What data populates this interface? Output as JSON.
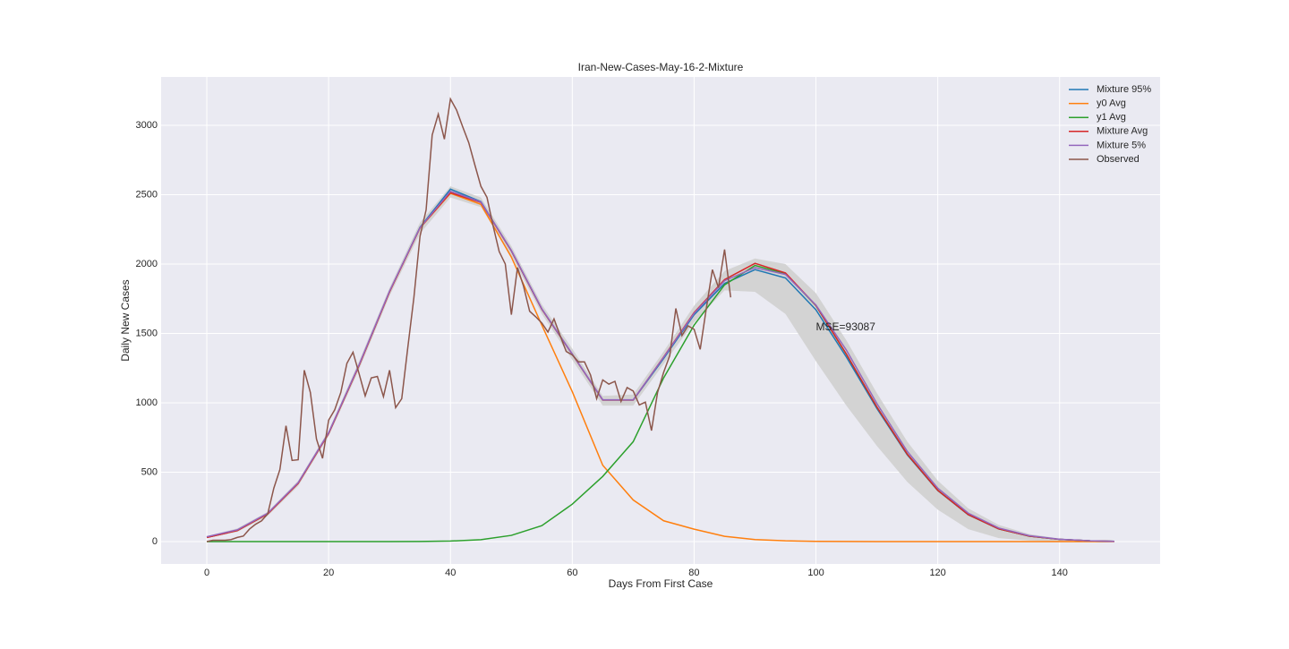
{
  "chart_data": {
    "type": "line",
    "title": "Iran-New-Cases-May-16-2-Mixture",
    "xlabel": "Days From First Case",
    "ylabel": "Daily New Cases",
    "annotation": {
      "text": "MSE=93087",
      "x": 100,
      "y": 1542
    },
    "xlim": [
      -7.5,
      156.5
    ],
    "ylim": [
      -161,
      3348
    ],
    "xticks": [
      0,
      20,
      40,
      60,
      80,
      100,
      120,
      140
    ],
    "yticks": [
      0,
      500,
      1000,
      1500,
      2000,
      2500,
      3000
    ],
    "grid": true,
    "legend": "upper right",
    "x": [
      0,
      5,
      10,
      15,
      20,
      25,
      30,
      35,
      40,
      45,
      50,
      55,
      60,
      65,
      70,
      75,
      80,
      85,
      90,
      95,
      100,
      105,
      110,
      115,
      120,
      125,
      130,
      135,
      140,
      145,
      149
    ],
    "band": {
      "color": "#d3d3d3",
      "upper": [
        40,
        95,
        215,
        440,
        800,
        1300,
        1830,
        2300,
        2560,
        2480,
        2130,
        1710,
        1390,
        1050,
        1060,
        1370,
        1700,
        1950,
        2040,
        2000,
        1790,
        1450,
        1070,
        720,
        440,
        240,
        120,
        55,
        22,
        8,
        3
      ],
      "lower": [
        25,
        70,
        185,
        400,
        760,
        1240,
        1770,
        2220,
        2480,
        2410,
        2060,
        1640,
        1310,
        980,
        980,
        1280,
        1580,
        1810,
        1800,
        1640,
        1300,
        980,
        690,
        430,
        230,
        90,
        25,
        8,
        2,
        0,
        0
      ]
    },
    "series": [
      {
        "name": "Mixture 95%",
        "color": "#1f77b4",
        "values": [
          30,
          80,
          200,
          420,
          780,
          1270,
          1800,
          2265,
          2540,
          2450,
          2095,
          1675,
          1350,
          1020,
          1020,
          1320,
          1635,
          1860,
          1960,
          1900,
          1670,
          1330,
          960,
          625,
          368,
          194,
          92,
          40,
          16,
          6,
          2
        ]
      },
      {
        "name": "y0 Avg",
        "color": "#ff7f0e",
        "values": [
          30,
          80,
          200,
          420,
          780,
          1270,
          1800,
          2260,
          2510,
          2430,
          2050,
          1560,
          1080,
          550,
          300,
          150,
          90,
          38,
          15,
          6,
          2,
          1,
          0,
          0,
          0,
          0,
          0,
          0,
          0,
          0,
          0
        ]
      },
      {
        "name": "y1 Avg",
        "color": "#2ca02c",
        "values": [
          0,
          0,
          0,
          0,
          0,
          0,
          0,
          1,
          4,
          14,
          45,
          115,
          270,
          470,
          720,
          1180,
          1560,
          1850,
          1990,
          1930,
          1700,
          1350,
          970,
          630,
          370,
          195,
          92,
          40,
          16,
          6,
          2
        ]
      },
      {
        "name": "Mixture Avg",
        "color": "#d62728",
        "values": [
          30,
          80,
          200,
          420,
          780,
          1270,
          1800,
          2261,
          2514,
          2444,
          2095,
          1675,
          1350,
          1020,
          1020,
          1330,
          1650,
          1888,
          2005,
          1936,
          1702,
          1351,
          970,
          630,
          370,
          195,
          92,
          40,
          16,
          6,
          2
        ]
      },
      {
        "name": "Mixture 5%",
        "color": "#9467bd",
        "values": [
          35,
          85,
          205,
          425,
          785,
          1275,
          1805,
          2262,
          2525,
          2447,
          2098,
          1678,
          1352,
          1022,
          1022,
          1328,
          1645,
          1880,
          1975,
          1925,
          1705,
          1380,
          995,
          650,
          385,
          205,
          98,
          43,
          17,
          6,
          2
        ]
      },
      {
        "name": "Observed",
        "color": "#8c564b",
        "x": [
          0,
          1,
          2,
          3,
          4,
          5,
          6,
          7,
          8,
          9,
          10,
          11,
          12,
          13,
          14,
          15,
          16,
          17,
          18,
          19,
          20,
          21,
          22,
          23,
          24,
          25,
          26,
          27,
          28,
          29,
          30,
          31,
          32,
          33,
          34,
          35,
          36,
          37,
          38,
          39,
          40,
          41,
          42,
          43,
          44,
          45,
          46,
          47,
          48,
          49,
          50,
          51,
          52,
          53,
          54,
          55,
          56,
          57,
          58,
          59,
          60,
          61,
          62,
          63,
          64,
          65,
          66,
          67,
          68,
          69,
          70,
          71,
          72,
          73,
          74,
          75,
          76,
          77,
          78,
          79,
          80,
          81,
          82,
          83,
          84,
          85,
          86
        ],
        "values": [
          0,
          10,
          10,
          10,
          15,
          30,
          40,
          90,
          125,
          150,
          200,
          385,
          520,
          835,
          585,
          590,
          1235,
          1075,
          740,
          600,
          875,
          950,
          1075,
          1285,
          1365,
          1210,
          1050,
          1180,
          1190,
          1045,
          1235,
          965,
          1030,
          1400,
          1760,
          2200,
          2390,
          2930,
          3080,
          2900,
          3190,
          3110,
          2990,
          2875,
          2715,
          2560,
          2480,
          2275,
          2090,
          2000,
          1635,
          1975,
          1840,
          1660,
          1620,
          1575,
          1510,
          1605,
          1485,
          1370,
          1345,
          1295,
          1295,
          1200,
          1030,
          1165,
          1135,
          1155,
          1010,
          1110,
          1085,
          985,
          1005,
          800,
          1075,
          1220,
          1340,
          1680,
          1485,
          1555,
          1530,
          1385,
          1680,
          1960,
          1830,
          2105,
          1760
        ]
      }
    ]
  }
}
